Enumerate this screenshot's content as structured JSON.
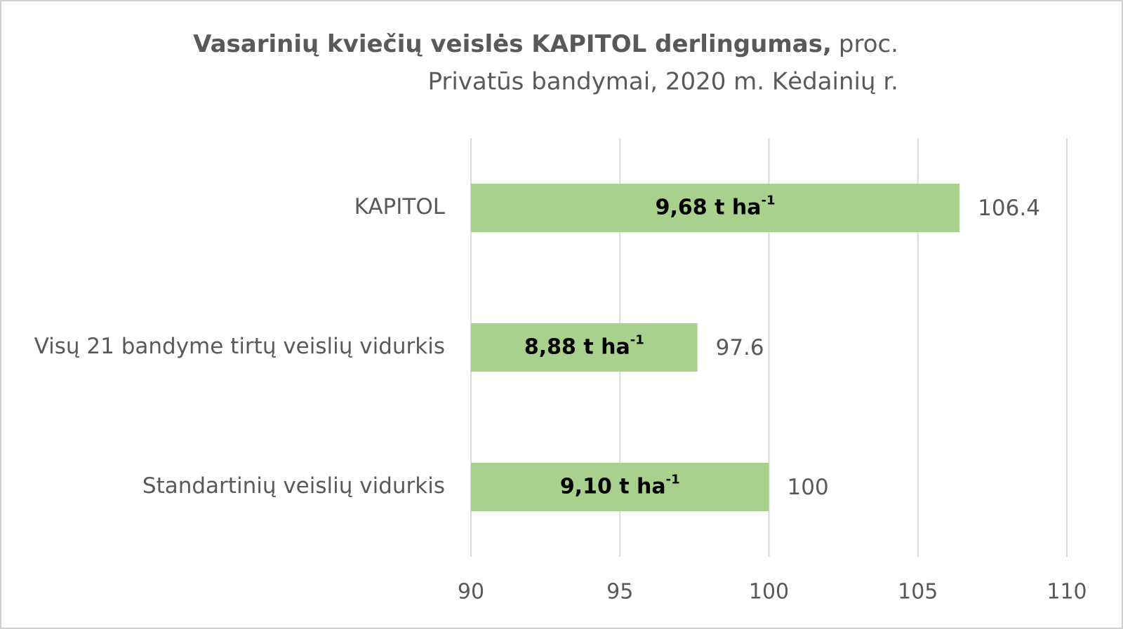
{
  "chart_data": {
    "type": "hbar",
    "title": "Vasarinių kviečių veislės KAPITOL derlingumas,",
    "title_unit": "proc.",
    "subtitle": "Privatūs bandymai, 2020 m. Kėdainių r.",
    "categories": [
      "KAPITOL",
      "Visų 21 bandyme tirtų veislių vidurkis",
      "Standartinių veislių vidurkis"
    ],
    "values": [
      106.4,
      97.6,
      100
    ],
    "inner_labels": [
      {
        "text": "9,68 t ha",
        "sup": "-1"
      },
      {
        "text": "8,88 t ha",
        "sup": "-1"
      },
      {
        "text": "9,10 t ha",
        "sup": "-1"
      }
    ],
    "color": "#a9d18e",
    "xlim": [
      90,
      110
    ],
    "xticks": [
      90,
      95,
      100,
      105,
      110
    ],
    "grid": true
  }
}
